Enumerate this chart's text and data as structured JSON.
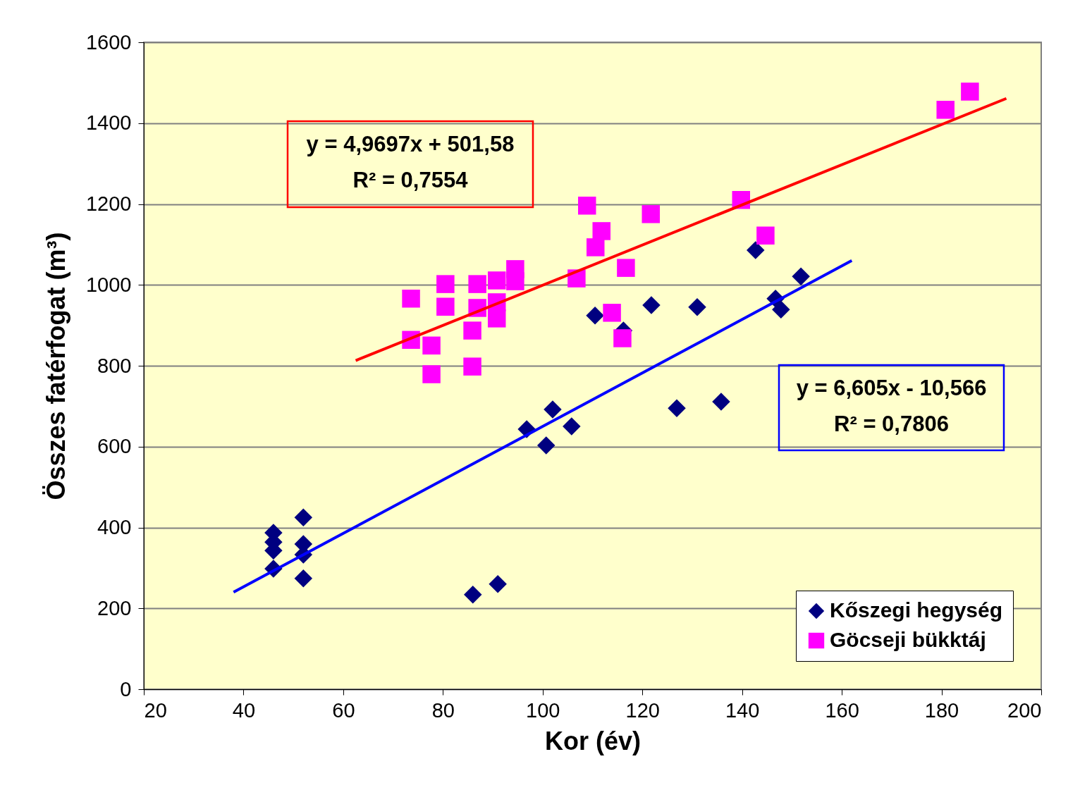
{
  "chart_data": {
    "type": "scatter",
    "xlabel": "Kor (év)",
    "ylabel": "Összes fatérfogat (m³)",
    "xlim": [
      20,
      200
    ],
    "xticks": [
      20,
      40,
      60,
      80,
      100,
      120,
      140,
      160,
      180,
      200
    ],
    "ylim": [
      0,
      1600
    ],
    "yticks": [
      0,
      200,
      400,
      600,
      800,
      1000,
      1200,
      1400,
      1600
    ],
    "grid": "y",
    "legend": "bottom right",
    "annotations": [
      "y = 4,9697x + 501,58",
      "R² = 0,7554",
      "y = 6,605x - 10,566",
      "R² = 0,7806"
    ],
    "series": [
      {
        "name": "Kőszegi hegység",
        "marker": "diamond",
        "color": "#000080",
        "x": [
          46,
          46,
          46,
          46,
          52,
          52,
          52,
          52,
          86,
          91,
          96.8,
          100.7,
          102,
          105.8,
          110.5,
          116.2,
          121.8,
          126.9,
          131,
          135.8,
          142.7,
          146.7,
          147.8,
          151.8
        ],
        "values": [
          387,
          364,
          343,
          298,
          425,
          359,
          333,
          274,
          234,
          260,
          643,
          603,
          692,
          650,
          924,
          887,
          950,
          695,
          945,
          711,
          1086,
          966,
          939,
          1021
        ]
      },
      {
        "name": "Göcseji bükktáj",
        "marker": "square",
        "color": "#ff00ff",
        "x": [
          73.6,
          73.6,
          77.7,
          77.7,
          80.5,
          80.5,
          85.9,
          85.9,
          86.9,
          86.9,
          90.8,
          90.8,
          90.8,
          94.5,
          94.5,
          106.8,
          108.9,
          110.6,
          111.8,
          113.9,
          116,
          116.7,
          121.7,
          139.8,
          144.7,
          180.8,
          185.7
        ],
        "values": [
          966,
          864,
          850,
          779,
          1002,
          946,
          798,
          887,
          1002,
          943,
          1011,
          957,
          917,
          1039,
          1009,
          1016,
          1196,
          1093,
          1133,
          931,
          868,
          1042,
          1175,
          1210,
          1122,
          1433,
          1478
        ]
      },
      {
        "type": "line",
        "color": "#ff0000",
        "x": [
          62.5,
          193
        ],
        "values": [
          813,
          1461
        ]
      },
      {
        "type": "line",
        "color": "#0000ff",
        "x": [
          38,
          162
        ],
        "values": [
          240,
          1060
        ]
      }
    ]
  }
}
